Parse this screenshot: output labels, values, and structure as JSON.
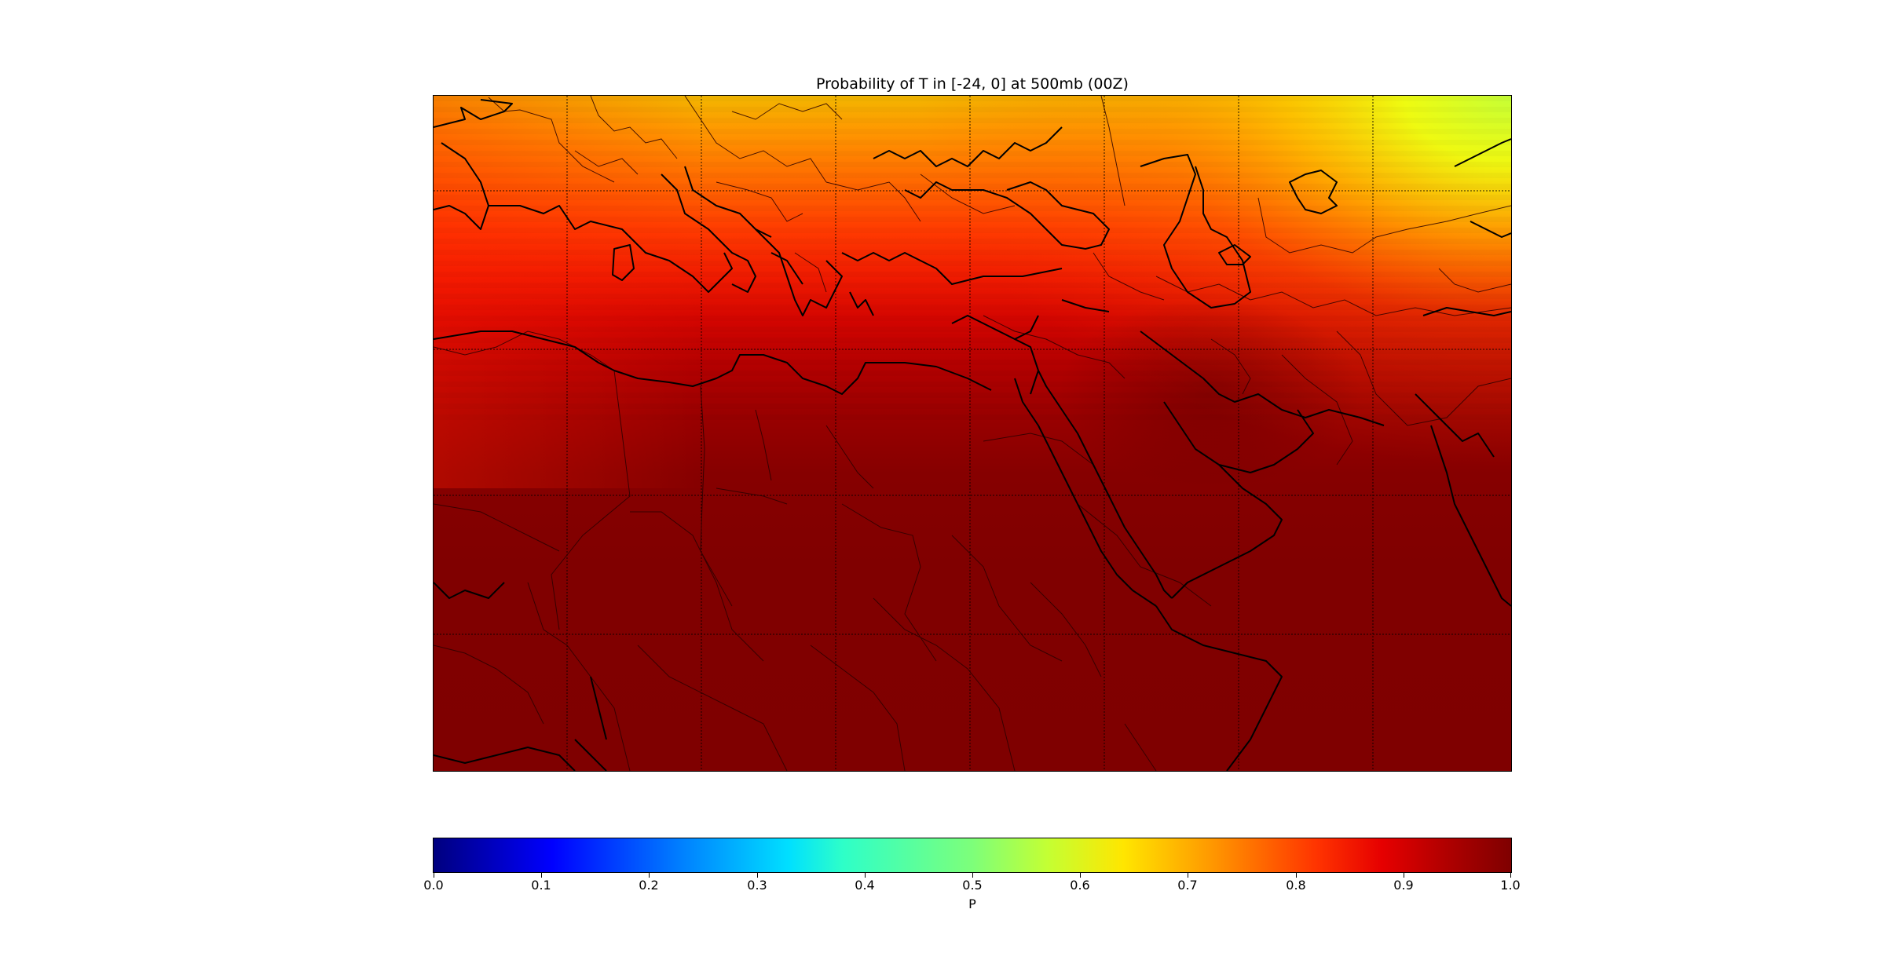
{
  "title": "Probability of T in [-24, 0] at 500mb (00Z)",
  "colorbar": {
    "label": "P",
    "ticks": [
      "0.0",
      "0.1",
      "0.2",
      "0.3",
      "0.4",
      "0.5",
      "0.6",
      "0.7",
      "0.8",
      "0.9",
      "1.0"
    ],
    "colormap": "jet",
    "range": [
      0.0,
      1.0
    ]
  },
  "map": {
    "colors": {
      "coastline": "#000000",
      "borders": "#1a0000",
      "gridlines": "#000000"
    },
    "field": {
      "description_rows": [
        0.62,
        0.66,
        0.7,
        0.74,
        0.78,
        0.82,
        0.86,
        0.89,
        0.92,
        0.95,
        0.98,
        1.0
      ],
      "east_adjustment_rows": [
        0.0,
        -0.02,
        -0.02,
        -0.02,
        -0.01,
        0.0
      ]
    }
  }
}
